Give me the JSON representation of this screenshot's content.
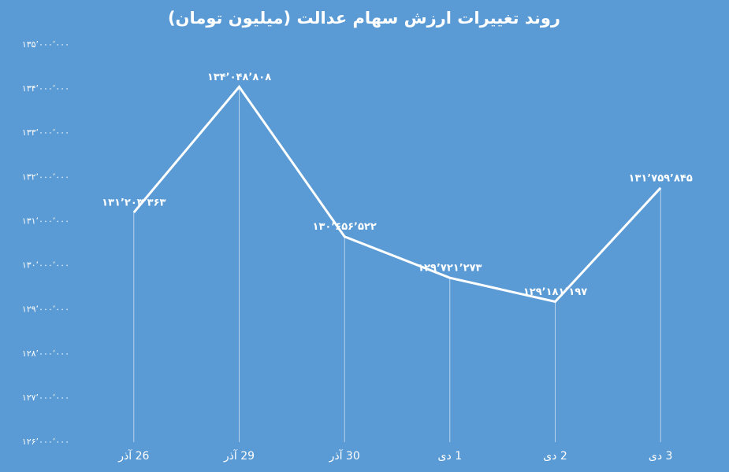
{
  "chart_data": {
    "type": "line",
    "title": "روند تغییرات ارزش سهام عدالت (میلیون تومان)",
    "categories": [
      "26 آذر",
      "29 آذر",
      "30 آذر",
      "1 دی",
      "2 دی",
      "3 دی"
    ],
    "values": [
      131203363,
      134048808,
      130656522,
      129721273,
      129181197,
      131759845
    ],
    "value_labels": [
      "۱۳۱٬۲۰۳٬۳۶۳",
      "۱۳۴٬۰۴۸٬۸۰۸",
      "۱۳۰٬۶۵۶٬۵۲۲",
      "۱۲۹٬۷۲۱٬۲۷۳",
      "۱۲۹٬۱۸۱٬۱۹۷",
      "۱۳۱٬۷۵۹٬۸۴۵"
    ],
    "color": "#ffffff",
    "ylim": [
      126000000,
      135000000
    ],
    "yticks": [
      {
        "value": 126000000,
        "label": "۱۲۶٬۰۰۰٬۰۰۰"
      },
      {
        "value": 127000000,
        "label": "۱۲۷٬۰۰۰٬۰۰۰"
      },
      {
        "value": 128000000,
        "label": "۱۲۸٬۰۰۰٬۰۰۰"
      },
      {
        "value": 129000000,
        "label": "۱۲۹٬۰۰۰٬۰۰۰"
      },
      {
        "value": 130000000,
        "label": "۱۳۰٬۰۰۰٬۰۰۰"
      },
      {
        "value": 131000000,
        "label": "۱۳۱٬۰۰۰٬۰۰۰"
      },
      {
        "value": 132000000,
        "label": "۱۳۲٬۰۰۰٬۰۰۰"
      },
      {
        "value": 133000000,
        "label": "۱۳۳٬۰۰۰٬۰۰۰"
      },
      {
        "value": 134000000,
        "label": "۱۳۴٬۰۰۰٬۰۰۰"
      },
      {
        "value": 135000000,
        "label": "۱۳۵٬۰۰۰٬۰۰۰"
      }
    ]
  }
}
